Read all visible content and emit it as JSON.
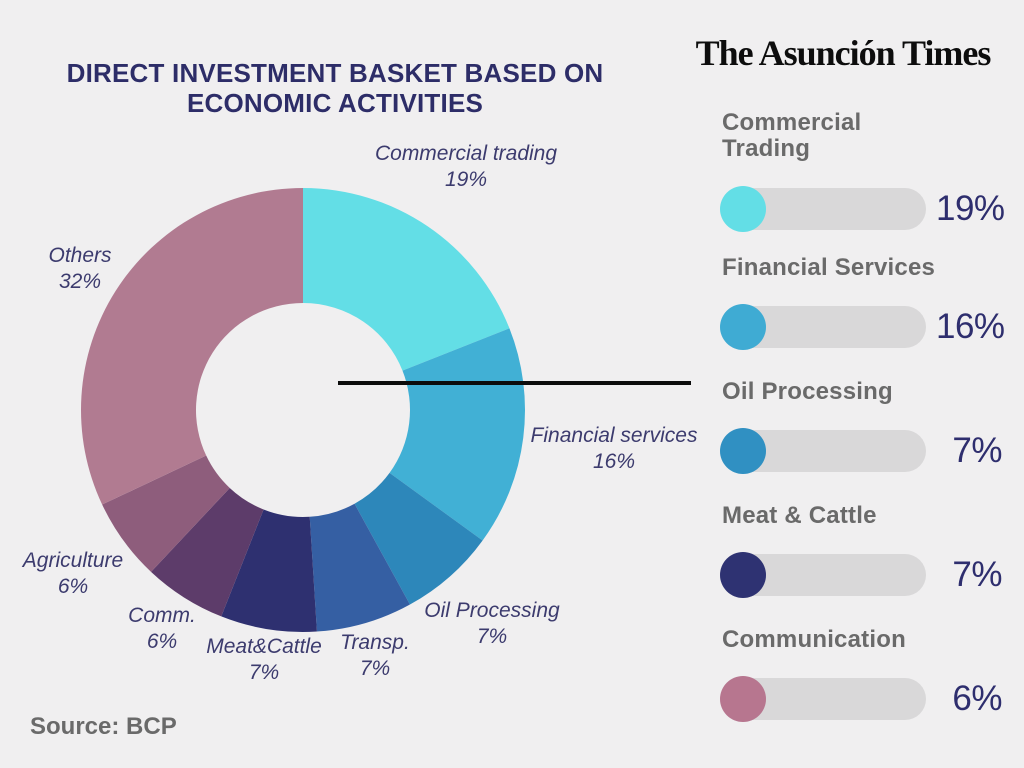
{
  "header": {
    "masthead": "The Asunción Times",
    "title": "DIRECT INVESTMENT BASKET BASED ON ECONOMIC ACTIVITIES",
    "title_display": "DIRECT INVESTMENT BASKET BASED ON\nECONOMIC ACTIVITIES"
  },
  "footer": {
    "source": "Source: BCP"
  },
  "chart_data": {
    "type": "pie",
    "subtype": "donut",
    "title": "DIRECT INVESTMENT BASKET BASED ON ECONOMIC ACTIVITIES",
    "unit": "%",
    "start_angle_deg": 0,
    "direction": "clockwise",
    "segments": [
      {
        "label": "Commercial trading",
        "pct": "19%",
        "value": 19,
        "color": "#63dee6"
      },
      {
        "label": "Financial services",
        "pct": "16%",
        "value": 16,
        "color": "#41b0d5"
      },
      {
        "label": "Oil Processing",
        "pct": "7%",
        "value": 7,
        "color": "#2d87ba"
      },
      {
        "label": "Transp.",
        "pct": "7%",
        "value": 7,
        "color": "#355fa3"
      },
      {
        "label": "Meat&Cattle",
        "pct": "7%",
        "value": 7,
        "color": "#2e3070"
      },
      {
        "label": "Comm.",
        "pct": "6%",
        "value": 6,
        "color": "#5d3c6a"
      },
      {
        "label": "Agriculture",
        "pct": "6%",
        "value": 6,
        "color": "#8e5d7c"
      },
      {
        "label": "Others",
        "pct": "32%",
        "value": 32,
        "color": "#b17b91"
      }
    ],
    "source": "Source: BCP"
  },
  "legend": {
    "rows": [
      {
        "label": "Commercial\nTrading",
        "pct": "19%",
        "value": 19,
        "color": "#63dee6"
      },
      {
        "label": "Financial Services",
        "pct": "16%",
        "value": 16,
        "color": "#3fabd3"
      },
      {
        "label": "Oil Processing",
        "pct": "7%",
        "value": 7,
        "color": "#3090c2"
      },
      {
        "label": "Meat & Cattle",
        "pct": "7%",
        "value": 7,
        "color": "#2e3272"
      },
      {
        "label": "Communication",
        "pct": "6%",
        "value": 6,
        "color": "#b7768f"
      }
    ]
  },
  "colors": {
    "background": "#f0eff0",
    "title_text": "#2d2d68",
    "label_text": "#3c3b6e",
    "legend_label_text": "#6a6a6a",
    "percent_text": "#2e2e6e",
    "bar_track": "#d9d8d9",
    "callout_line": "#0c0c0c"
  }
}
